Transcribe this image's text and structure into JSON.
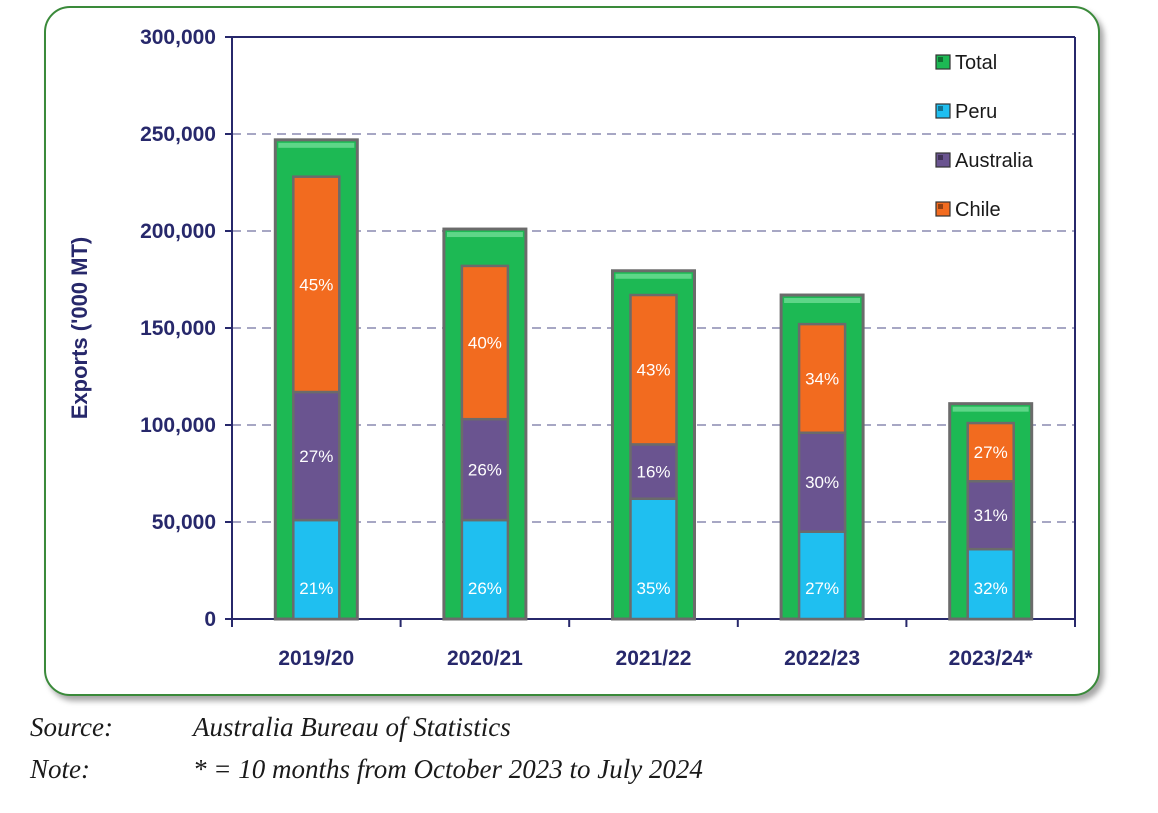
{
  "chart_data": {
    "type": "bar",
    "ylabel": "Exports ('000 MT)",
    "xlabel": "",
    "ylim": [
      0,
      300000
    ],
    "yticks": [
      "0",
      "50,000",
      "100,000",
      "150,000",
      "200,000",
      "250,000",
      "300,000"
    ],
    "categories": [
      "2019/20",
      "2020/21",
      "2021/22",
      "2022/23",
      "2023/24*"
    ],
    "series": [
      {
        "name": "Total",
        "color": "#1db954",
        "values": [
          247000,
          201000,
          179500,
          167000,
          111000
        ]
      },
      {
        "name": "Peru",
        "color": "#1fbff0",
        "values": [
          51000,
          51000,
          62000,
          45000,
          36000
        ],
        "labels": [
          "21%",
          "26%",
          "35%",
          "27%",
          "32%"
        ]
      },
      {
        "name": "Australia",
        "color": "#6a5490",
        "values": [
          66000,
          52000,
          28000,
          51000,
          35000
        ],
        "labels": [
          "27%",
          "26%",
          "16%",
          "30%",
          "31%"
        ]
      },
      {
        "name": "Chile",
        "color": "#f26b1f",
        "values": [
          111000,
          79000,
          77000,
          56000,
          30000
        ],
        "labels": [
          "45%",
          "40%",
          "43%",
          "34%",
          "27%"
        ]
      }
    ],
    "grid": true,
    "legend_position": "top-right"
  },
  "footnotes": {
    "source_label": "Source:",
    "source_text": "Australia Bureau of Statistics",
    "note_label": "Note:",
    "note_text": "* = 10 months from October 2023 to July 2024"
  }
}
